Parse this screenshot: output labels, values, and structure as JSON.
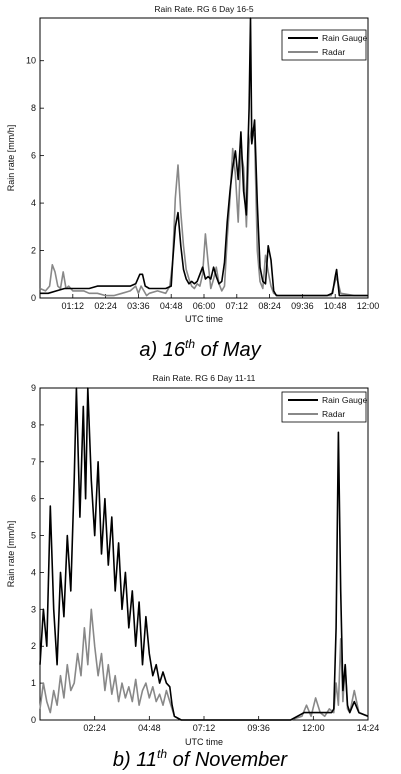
{
  "chart_data": [
    {
      "type": "line",
      "title": "Rain Rate. RG 6 Day 16-5",
      "xlabel": "UTC time",
      "ylabel": "Rain rate [mm/h]",
      "xlim": [
        0,
        12
      ],
      "ylim": [
        0,
        11.8
      ],
      "x_ticks": [
        1.2,
        2.4,
        3.6,
        4.8,
        6.0,
        7.2,
        8.4,
        9.6,
        10.8,
        12.0
      ],
      "x_tick_labels": [
        "01:12",
        "02:24",
        "03:36",
        "04:48",
        "06:00",
        "07:12",
        "08:24",
        "09:36",
        "10:48",
        "12:00"
      ],
      "y_ticks": [
        0,
        2,
        4,
        6,
        8,
        10
      ],
      "y_tick_labels": [
        "0",
        "2",
        "4",
        "6",
        "8",
        "10"
      ],
      "legend": "top-right",
      "caption_prefix": "a) 16",
      "caption_sup": "th",
      "caption_suffix": " of May",
      "series": [
        {
          "name": "Rain Gauge",
          "color": "#000000",
          "x": [
            0,
            0.3,
            0.6,
            0.9,
            1.2,
            1.5,
            1.8,
            2.1,
            2.4,
            2.7,
            3.0,
            3.3,
            3.5,
            3.65,
            3.75,
            3.85,
            4.0,
            4.3,
            4.6,
            4.8,
            4.85,
            4.95,
            5.05,
            5.15,
            5.25,
            5.35,
            5.45,
            5.55,
            5.65,
            5.75,
            5.85,
            5.95,
            6.05,
            6.15,
            6.25,
            6.35,
            6.45,
            6.55,
            6.65,
            6.75,
            6.85,
            6.95,
            7.05,
            7.15,
            7.25,
            7.35,
            7.45,
            7.55,
            7.6,
            7.65,
            7.7,
            7.75,
            7.85,
            7.95,
            8.05,
            8.15,
            8.25,
            8.35,
            8.45,
            8.55,
            8.65,
            8.8,
            9.0,
            9.3,
            9.6,
            9.9,
            10.2,
            10.5,
            10.7,
            10.8,
            10.85,
            10.95,
            11.2,
            11.6,
            12.0
          ],
          "y": [
            0.2,
            0.2,
            0.3,
            0.4,
            0.4,
            0.4,
            0.4,
            0.5,
            0.5,
            0.5,
            0.5,
            0.5,
            0.6,
            1.0,
            1.0,
            0.5,
            0.4,
            0.4,
            0.4,
            0.5,
            1.5,
            3.0,
            3.6,
            2.2,
            1.2,
            0.8,
            0.6,
            0.7,
            0.6,
            0.7,
            1.0,
            1.3,
            0.8,
            0.9,
            0.8,
            1.3,
            0.9,
            0.6,
            0.7,
            1.5,
            3.2,
            4.5,
            5.5,
            6.2,
            5.0,
            7.0,
            4.5,
            3.5,
            6.0,
            8.0,
            11.8,
            6.5,
            7.5,
            4.0,
            1.3,
            0.7,
            0.6,
            2.2,
            1.6,
            0.3,
            0.1,
            0.1,
            0.1,
            0.1,
            0.1,
            0.1,
            0.1,
            0.1,
            0.2,
            0.9,
            1.2,
            0.1,
            0.1,
            0.1,
            0.1
          ]
        },
        {
          "name": "Radar",
          "color": "#888888",
          "x": [
            0,
            0.2,
            0.35,
            0.45,
            0.55,
            0.65,
            0.75,
            0.85,
            0.95,
            1.05,
            1.2,
            1.4,
            1.6,
            1.8,
            2.1,
            2.4,
            2.7,
            3.0,
            3.3,
            3.5,
            3.6,
            3.7,
            3.8,
            3.9,
            4.0,
            4.3,
            4.6,
            4.75,
            4.85,
            4.95,
            5.05,
            5.15,
            5.25,
            5.35,
            5.45,
            5.55,
            5.65,
            5.75,
            5.85,
            5.95,
            6.05,
            6.15,
            6.25,
            6.35,
            6.45,
            6.55,
            6.65,
            6.75,
            6.85,
            6.95,
            7.05,
            7.15,
            7.25,
            7.35,
            7.45,
            7.55,
            7.65,
            7.75,
            7.85,
            7.95,
            8.05,
            8.15,
            8.25,
            8.35,
            8.45,
            8.55,
            8.7,
            9.0,
            9.3,
            9.6,
            9.9,
            10.2,
            10.5,
            10.65,
            10.75,
            10.85,
            11.0,
            11.5,
            12.0
          ],
          "y": [
            0.4,
            0.3,
            0.5,
            1.4,
            1.1,
            0.5,
            0.4,
            1.1,
            0.4,
            0.5,
            0.3,
            0.3,
            0.3,
            0.2,
            0.2,
            0.1,
            0.1,
            0.2,
            0.3,
            0.5,
            0.2,
            0.5,
            0.3,
            0.1,
            0.2,
            0.3,
            0.2,
            0.5,
            1.5,
            4.2,
            5.6,
            3.6,
            2.2,
            1.2,
            0.8,
            0.5,
            0.4,
            0.6,
            0.5,
            1.0,
            2.7,
            1.5,
            0.4,
            0.8,
            1.3,
            0.6,
            0.3,
            0.5,
            2.5,
            4.2,
            6.3,
            5.2,
            3.2,
            6.2,
            5.5,
            3.0,
            6.5,
            7.2,
            6.8,
            2.0,
            0.7,
            0.4,
            1.8,
            1.1,
            0.5,
            0.2,
            0.1,
            0.1,
            0.1,
            0.1,
            0.1,
            0.1,
            0.1,
            0.1,
            0.5,
            0.9,
            0.2,
            0.1,
            0.1
          ]
        }
      ]
    },
    {
      "type": "line",
      "title": "Rain Rate. RG 6 Day 11-11",
      "xlabel": "UTC time",
      "ylabel": "Rain rate [mm/h]",
      "xlim": [
        0,
        14.4
      ],
      "ylim": [
        0,
        9
      ],
      "x_ticks": [
        2.4,
        4.8,
        7.2,
        9.6,
        12.0,
        14.4
      ],
      "x_tick_labels": [
        "02:24",
        "04:48",
        "07:12",
        "09:36",
        "12:00",
        "14:24"
      ],
      "y_ticks": [
        0,
        1,
        2,
        3,
        4,
        5,
        6,
        7,
        8,
        9
      ],
      "y_tick_labels": [
        "0",
        "1",
        "2",
        "3",
        "4",
        "5",
        "6",
        "7",
        "8",
        "9"
      ],
      "legend": "top-right",
      "caption_prefix": "b) 11",
      "caption_sup": "th",
      "caption_suffix": " of November",
      "series": [
        {
          "name": "Rain Gauge",
          "color": "#000000",
          "x": [
            0,
            0.15,
            0.3,
            0.45,
            0.6,
            0.75,
            0.9,
            1.05,
            1.2,
            1.35,
            1.5,
            1.6,
            1.75,
            1.9,
            2.0,
            2.1,
            2.25,
            2.4,
            2.55,
            2.7,
            2.85,
            3.0,
            3.15,
            3.3,
            3.45,
            3.6,
            3.75,
            3.9,
            4.05,
            4.2,
            4.35,
            4.5,
            4.65,
            4.8,
            4.95,
            5.1,
            5.25,
            5.4,
            5.55,
            5.7,
            5.8,
            5.9,
            6.2,
            7.0,
            8.0,
            9.0,
            10.0,
            11.0,
            11.6,
            12.0,
            12.4,
            12.8,
            12.9,
            13.0,
            13.1,
            13.2,
            13.3,
            13.4,
            13.5,
            13.6,
            13.8,
            14.0,
            14.4
          ],
          "y": [
            1.5,
            3.0,
            2.0,
            5.8,
            3.0,
            1.5,
            4.0,
            2.8,
            5.0,
            3.5,
            6.5,
            9.0,
            5.5,
            8.5,
            6.0,
            9.0,
            6.5,
            5.0,
            7.0,
            4.5,
            6.0,
            4.2,
            5.5,
            3.5,
            4.8,
            3.0,
            4.0,
            2.5,
            3.5,
            2.0,
            3.2,
            1.5,
            2.8,
            1.8,
            1.2,
            1.5,
            1.0,
            1.3,
            1.0,
            0.9,
            0.4,
            0.1,
            0.0,
            0.0,
            0.0,
            0.0,
            0.0,
            0.0,
            0.2,
            0.2,
            0.2,
            0.2,
            0.3,
            2.5,
            7.8,
            3.5,
            0.8,
            1.5,
            0.4,
            0.2,
            0.5,
            0.2,
            0.1
          ]
        },
        {
          "name": "Radar",
          "color": "#888888",
          "x": [
            0,
            0.15,
            0.3,
            0.45,
            0.6,
            0.75,
            0.9,
            1.05,
            1.2,
            1.35,
            1.5,
            1.65,
            1.8,
            1.95,
            2.1,
            2.25,
            2.4,
            2.55,
            2.7,
            2.85,
            3.0,
            3.15,
            3.3,
            3.45,
            3.6,
            3.75,
            3.9,
            4.05,
            4.2,
            4.35,
            4.5,
            4.65,
            4.8,
            4.95,
            5.1,
            5.25,
            5.4,
            5.55,
            5.7,
            5.8,
            5.9,
            6.2,
            7.0,
            8.0,
            9.0,
            10.0,
            11.0,
            11.5,
            11.7,
            11.9,
            12.1,
            12.3,
            12.5,
            12.7,
            12.9,
            13.0,
            13.1,
            13.2,
            13.3,
            13.4,
            13.5,
            13.6,
            13.8,
            14.0,
            14.4
          ],
          "y": [
            0.3,
            1.0,
            0.5,
            0.2,
            0.8,
            0.4,
            1.2,
            0.6,
            1.5,
            0.8,
            1.0,
            1.8,
            1.2,
            2.5,
            1.5,
            3.0,
            2.0,
            1.2,
            1.8,
            0.8,
            1.5,
            0.7,
            1.2,
            0.5,
            1.0,
            0.6,
            0.9,
            0.5,
            1.1,
            0.4,
            0.8,
            1.0,
            0.6,
            0.9,
            0.5,
            0.7,
            0.4,
            0.8,
            0.5,
            0.3,
            0.1,
            0.0,
            0.0,
            0.0,
            0.0,
            0.0,
            0.0,
            0.1,
            0.4,
            0.1,
            0.6,
            0.2,
            0.1,
            0.3,
            0.2,
            1.0,
            0.4,
            2.2,
            0.5,
            1.5,
            0.3,
            0.2,
            0.8,
            0.2,
            0.1
          ]
        }
      ]
    }
  ]
}
